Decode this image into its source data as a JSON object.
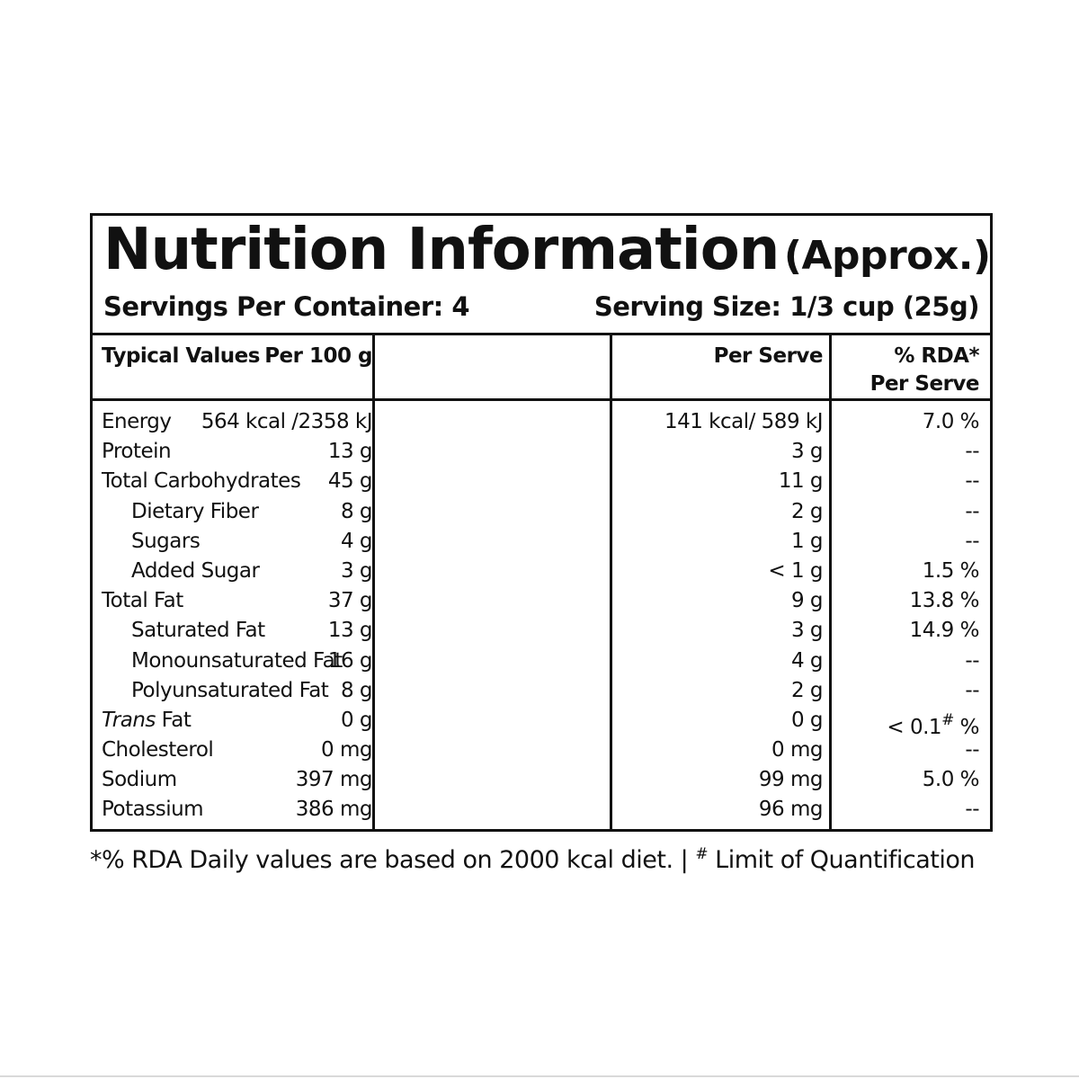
{
  "label": {
    "title": "Nutrition Information",
    "title_suffix": "(Approx.)",
    "servings_per_container": "Servings Per Container: 4",
    "serving_size": "Serving Size: 1/3 cup (25g)"
  },
  "columns": {
    "typical_values": "Typical Values",
    "per_100g": "Per 100 g",
    "per_serve": "Per Serve",
    "rda_line1": "% RDA*",
    "rda_line2": "Per Serve"
  },
  "rows": [
    {
      "name": "Energy",
      "per_100g": "564 kcal /2358 kJ",
      "per_serve": "141 kcal/ 589 kJ",
      "rda": "7.0 %"
    },
    {
      "name": "Protein",
      "per_100g": "13 g",
      "per_serve": "3 g",
      "rda": "--"
    },
    {
      "name": "Total Carbohydrates",
      "per_100g": "45 g",
      "per_serve": "11 g",
      "rda": "--"
    },
    {
      "name": "Dietary Fiber",
      "per_100g": "8 g",
      "per_serve": "2 g",
      "rda": "--"
    },
    {
      "name": "Sugars",
      "per_100g": "4 g",
      "per_serve": "1 g",
      "rda": "--"
    },
    {
      "name": "Added Sugar",
      "per_100g": "3 g",
      "per_serve": "< 1 g",
      "rda": "1.5 %"
    },
    {
      "name": "Total Fat",
      "per_100g": "37 g",
      "per_serve": "9 g",
      "rda": "13.8 %"
    },
    {
      "name": "Saturated Fat",
      "per_100g": "13 g",
      "per_serve": "3 g",
      "rda": "14.9 %"
    },
    {
      "name": "Monounsaturated Fat",
      "per_100g": "16 g",
      "per_serve": "4 g",
      "rda": "--"
    },
    {
      "name": "Polyunsaturated Fat",
      "per_100g": "8 g",
      "per_serve": "2 g",
      "rda": "--"
    },
    {
      "name_italic": "Trans",
      "name_rest": " Fat",
      "per_100g": "0 g",
      "per_serve": "0 g",
      "rda_value": "< 0.1",
      "rda_hash": "#",
      "rda_unit": " %"
    },
    {
      "name": "Cholesterol",
      "per_100g": "0 mg",
      "per_serve": "0 mg",
      "rda": "--"
    },
    {
      "name": "Sodium",
      "per_100g": "397 mg",
      "per_serve": "99 mg",
      "rda": "5.0 %"
    },
    {
      "name": "Potassium",
      "per_100g": "386 mg",
      "per_serve": "96 mg",
      "rda": "--"
    }
  ],
  "footnote": {
    "rda_note": "*% RDA Daily values are based on 2000 kcal diet.",
    "separator": "|",
    "hash": "#",
    "loq_note": " Limit of Quantification"
  }
}
